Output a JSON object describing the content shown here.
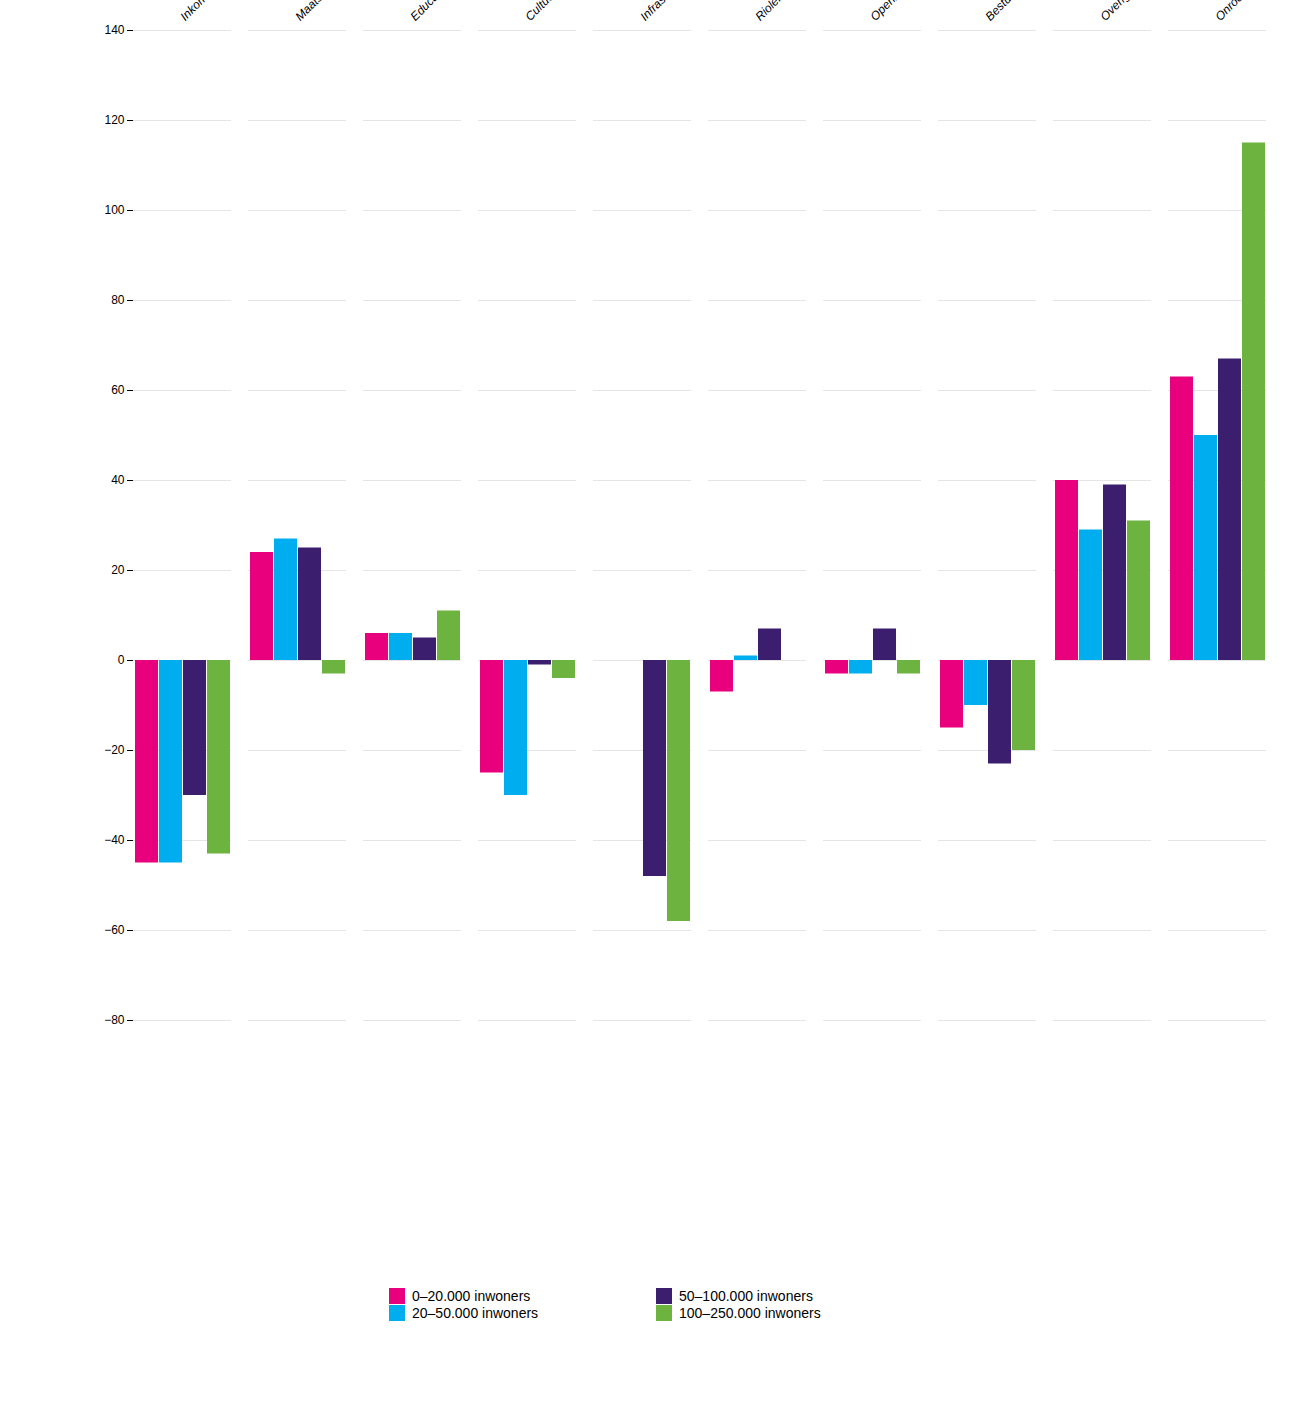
{
  "chart_data": {
    "type": "bar",
    "categories": [
      "Inkomen en participatie",
      "Maatschappelijke ondersteuning & Jeugd",
      "Educatie",
      "Cultuur en ontspanning",
      "Infrastructuur en gebiedsontwikkeling",
      "Riolering en reiniging",
      "Openbare orde en veiligheid",
      "Bestuur en algemene ondersteuning",
      "Overige eigen middelen",
      "Onroerendezaakbelasting"
    ],
    "series": [
      {
        "name": "0–20.000 inwoners",
        "color": "#E8007D",
        "values": [
          -45,
          24,
          6,
          -25,
          0,
          -7,
          -3,
          -15,
          40,
          63
        ]
      },
      {
        "name": "20–50.000 inwoners",
        "color": "#00AEEF",
        "values": [
          -45,
          27,
          6,
          -30,
          0,
          1,
          -3,
          -10,
          29,
          50
        ]
      },
      {
        "name": "50–100.000 inwoners",
        "color": "#3B1F6E",
        "values": [
          -30,
          25,
          5,
          -1,
          -48,
          7,
          7,
          -23,
          39,
          67
        ]
      },
      {
        "name": "100–250.000 inwoners",
        "color": "#6DB33F",
        "values": [
          -43,
          -3,
          11,
          -4,
          -58,
          0,
          -3,
          -20,
          31,
          115
        ]
      }
    ],
    "ylim": [
      -80,
      140
    ],
    "yticks": [
      -80,
      -60,
      -40,
      -20,
      0,
      20,
      40,
      60,
      80,
      100,
      120,
      140
    ],
    "grid": true,
    "legend": "bottom"
  }
}
